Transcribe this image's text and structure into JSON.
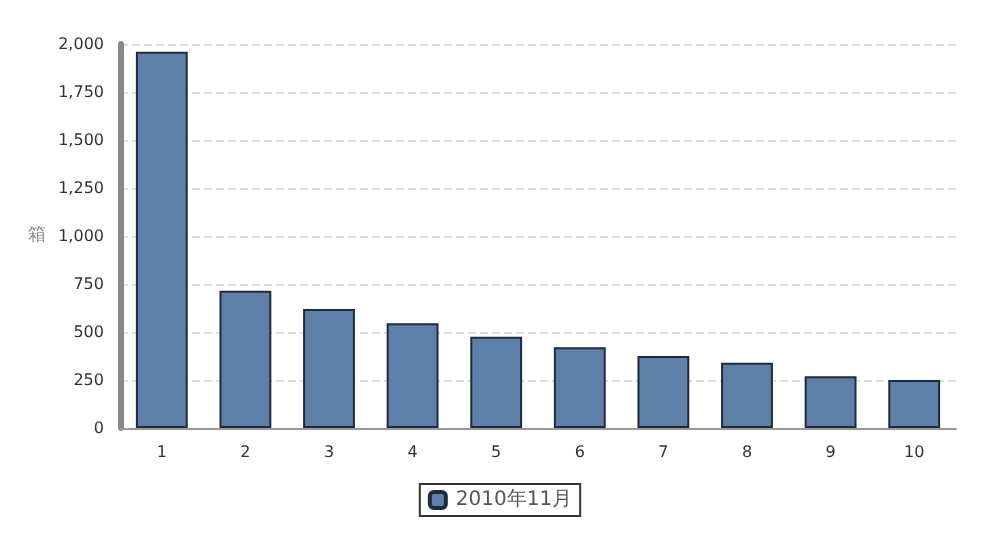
{
  "chart_data": {
    "type": "bar",
    "ylabel": "箱",
    "categories": [
      "1",
      "2",
      "3",
      "4",
      "5",
      "6",
      "7",
      "8",
      "9",
      "10"
    ],
    "series": [
      {
        "name": "2010年11月",
        "color": "#5e80a8",
        "values": [
          1960,
          715,
          620,
          545,
          475,
          420,
          375,
          340,
          270,
          250
        ]
      }
    ],
    "ylim": [
      0,
      2000
    ],
    "yticks": [
      {
        "value": 0,
        "label": "0"
      },
      {
        "value": 250,
        "label": "250"
      },
      {
        "value": 500,
        "label": "500"
      },
      {
        "value": 750,
        "label": "750"
      },
      {
        "value": 1000,
        "label": "1,000"
      },
      {
        "value": 1250,
        "label": "1,250"
      },
      {
        "value": 1500,
        "label": "1,500"
      },
      {
        "value": 1750,
        "label": "1,750"
      },
      {
        "value": 2000,
        "label": "2,000"
      }
    ],
    "grid": "y",
    "legend": "bottom"
  }
}
